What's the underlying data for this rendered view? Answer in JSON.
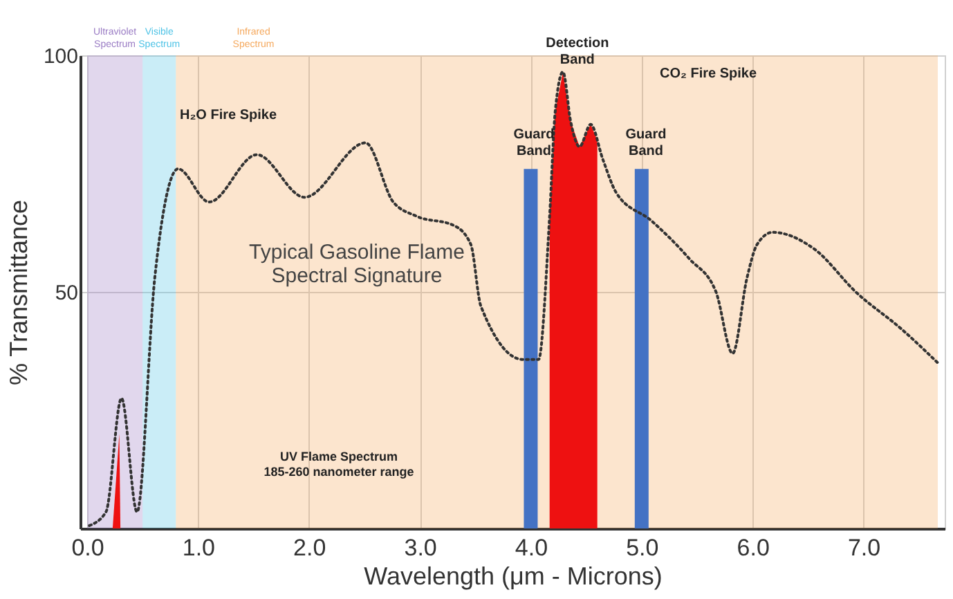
{
  "chart_data": {
    "type": "line",
    "title": "Typical Gasoline Flame\nSpectral Signature",
    "xlabel": "Wavelength (μm - Microns)",
    "ylabel": "% Transmittance",
    "xlim": [
      0,
      7.67
    ],
    "ylim": [
      0,
      100
    ],
    "xticks": [
      {
        "value": 0,
        "label": "0.0"
      },
      {
        "value": 1,
        "label": "1.0"
      },
      {
        "value": 2,
        "label": "2.0"
      },
      {
        "value": 3,
        "label": "3.0"
      },
      {
        "value": 4,
        "label": "4.0"
      },
      {
        "value": 5,
        "label": "5.0"
      },
      {
        "value": 6,
        "label": "6.0"
      },
      {
        "value": 7,
        "label": "7.0"
      }
    ],
    "yticks": [
      50,
      100
    ],
    "grid": true,
    "bands": [
      {
        "axis": "x",
        "from": 0,
        "to": 0.5,
        "label": "Ultraviolet\nSpectrum",
        "color": "#9a7cc4"
      },
      {
        "axis": "x",
        "from": 0.5,
        "to": 0.8,
        "label": "Visible\nSpectrum",
        "color": "#4fc3e6"
      },
      {
        "axis": "x",
        "from": 0.8,
        "to": 7.67,
        "label": "Infrared\nSpectrum",
        "color": "#f5a95e"
      }
    ],
    "series": [
      {
        "color": "#333333",
        "line_style": "dotted",
        "x": [
          0.02,
          0.17,
          0.31,
          0.45,
          0.61,
          0.82,
          1.1,
          1.53,
          1.96,
          2.51,
          2.76,
          2.97,
          3.31,
          3.46,
          3.55,
          3.93,
          4.07,
          4.17,
          4.22,
          4.29,
          4.36,
          4.44,
          4.54,
          4.65,
          4.77,
          5.09,
          5.43,
          5.67,
          5.82,
          5.95,
          6.04,
          6.18,
          6.56,
          6.93,
          7.35,
          7.67
        ],
        "values": [
          0.6,
          3.5,
          27.5,
          3.5,
          53,
          76,
          69,
          79,
          70,
          81.5,
          69,
          66,
          64,
          60,
          47,
          35.7,
          35.7,
          66,
          88,
          96.5,
          86,
          80.7,
          85.4,
          78,
          71,
          65,
          57,
          50,
          37,
          53,
          60,
          62.6,
          59,
          50,
          42,
          35
        ]
      },
      {
        "type": "area",
        "color": "#ee1111",
        "x": [
          0.23,
          0.29,
          0.3
        ],
        "values": [
          0,
          20,
          0
        ]
      },
      {
        "type": "area",
        "color": "#ee1111",
        "x": [
          4.17,
          4.22,
          4.29,
          4.36,
          4.44,
          4.54,
          4.6
        ],
        "values": [
          66,
          88,
          96.5,
          86,
          80.7,
          85.4,
          82
        ]
      },
      {
        "type": "bar",
        "color": "#4472c4",
        "x": [
          4.0,
          5.0
        ],
        "values": [
          76,
          76
        ]
      }
    ],
    "annotations": [
      {
        "text": "Detection\nBand",
        "x": 4.42,
        "y": 100
      },
      "CO₂ Fire Spike",
      "H₂O Fire Spike",
      "Guard\nBand",
      "Guard\nBand",
      "UV Flame Spectrum\n185-260 nanometer range"
    ]
  }
}
